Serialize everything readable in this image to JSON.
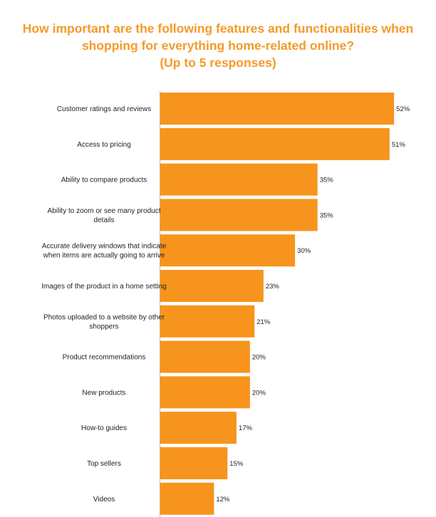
{
  "chart_data": {
    "type": "bar",
    "orientation": "horizontal",
    "title_lines": [
      "How important are the following features and functionalities when",
      "shopping for everything home-related online?",
      "(Up to 5 responses)"
    ],
    "categories": [
      [
        "Customer ratings and reviews"
      ],
      [
        "Access to pricing"
      ],
      [
        "Ability to compare products"
      ],
      [
        "Ability to zoom or see many product",
        "details"
      ],
      [
        "Accurate delivery windows that indicate",
        "when items are actually going to arrive"
      ],
      [
        "Images of the product in a home setting"
      ],
      [
        "Photos uploaded to a website by other",
        "shoppers"
      ],
      [
        "Product recommendations"
      ],
      [
        "New products"
      ],
      [
        "How-to guides"
      ],
      [
        "Top sellers"
      ],
      [
        "Videos"
      ]
    ],
    "values": [
      52,
      51,
      35,
      35,
      30,
      23,
      21,
      20,
      20,
      17,
      15,
      12
    ],
    "value_labels": [
      "52%",
      "51%",
      "35%",
      "35%",
      "30%",
      "23%",
      "21%",
      "20%",
      "20%",
      "17%",
      "15%",
      "12%"
    ],
    "unit": "%",
    "bar_color": "#f7941d",
    "title_color": "#f59a2a",
    "grid": false,
    "legend": "none"
  }
}
